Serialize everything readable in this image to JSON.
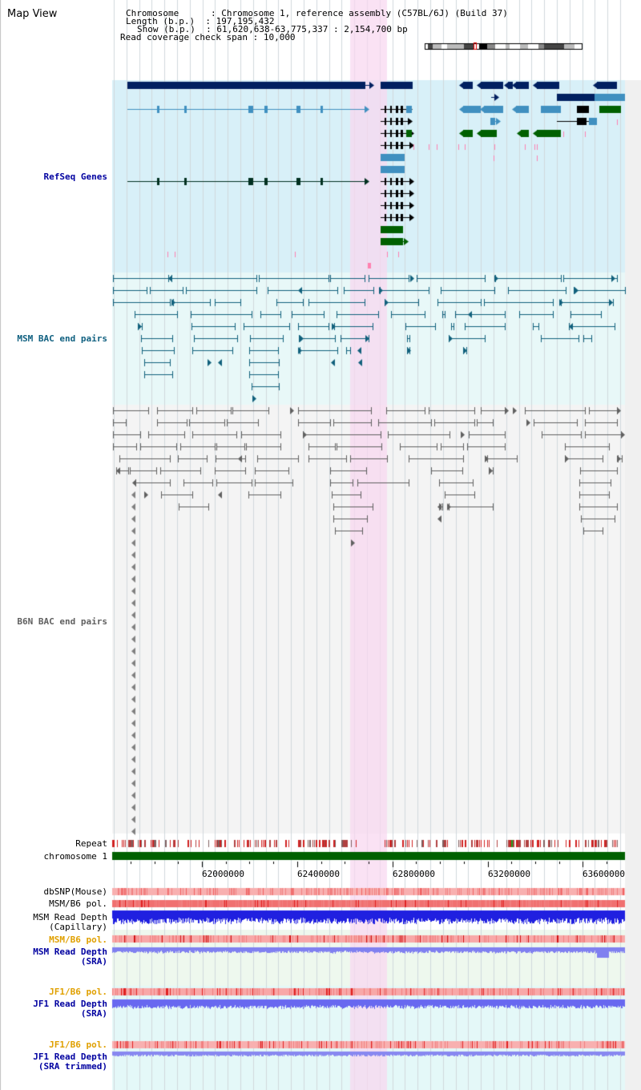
{
  "header": {
    "title": "Map View",
    "chromosome_label": "Chromosome      ",
    "chromosome_value": ": Chromosome 1, reference assembly (C57BL/6J) (Build 37)",
    "length_label": "Length (b.p.)  ",
    "length_value": ": 197,195,432",
    "show_label": "Show (b.p.)  ",
    "show_value": ": 61,620,638-63,775,337 : 2,154,700 bp",
    "span_label": "Read coverage check span",
    "span_value": ": 10,000"
  },
  "tracks": {
    "refseq": "RefSeq Genes",
    "msm_bac": "MSM BAC end pairs",
    "b6n_bac": "B6N BAC end pairs",
    "repeat": "Repeat",
    "chromosome": "chromosome 1",
    "dbsnp": "dbSNP(Mouse)",
    "msm_b6_pol": "MSM/B6 pol.",
    "msm_depth_cap_1": "MSM Read Depth",
    "msm_depth_cap_2": "(Capillary)",
    "msm_b6_pol_sra": "MSM/B6 pol.",
    "msm_depth_sra_1": "MSM Read Depth",
    "msm_depth_sra_2": "(SRA)",
    "jf1_b6_pol": "JF1/B6 pol.",
    "jf1_depth_1": "JF1 Read Depth",
    "jf1_depth_2": "(SRA)",
    "jf1_b6_pol_t": "JF1/B6 pol.",
    "jf1_depth_t_1": "JF1 Read Depth",
    "jf1_depth_t_2": "(SRA trimmed)"
  },
  "axis": {
    "ticks": [
      "62000000",
      "62400000",
      "62800000",
      "63200000",
      "63600000"
    ]
  },
  "colors": {
    "refseq_bg": "#d8f0f8",
    "msm_bg": "#e8f8f8",
    "b6n_bg": "#f4f4f4",
    "highlight": "#f8d8f0",
    "refseq_dark": "#002060",
    "refseq_mid": "#4090c0",
    "refseq_green": "#006000",
    "msm_line": "#10607c",
    "b6n_line": "#606060",
    "label_blue": "#0000a0",
    "label_teal": "#106080",
    "label_orange": "#e0a000",
    "chrom_bar": "#006000"
  }
}
